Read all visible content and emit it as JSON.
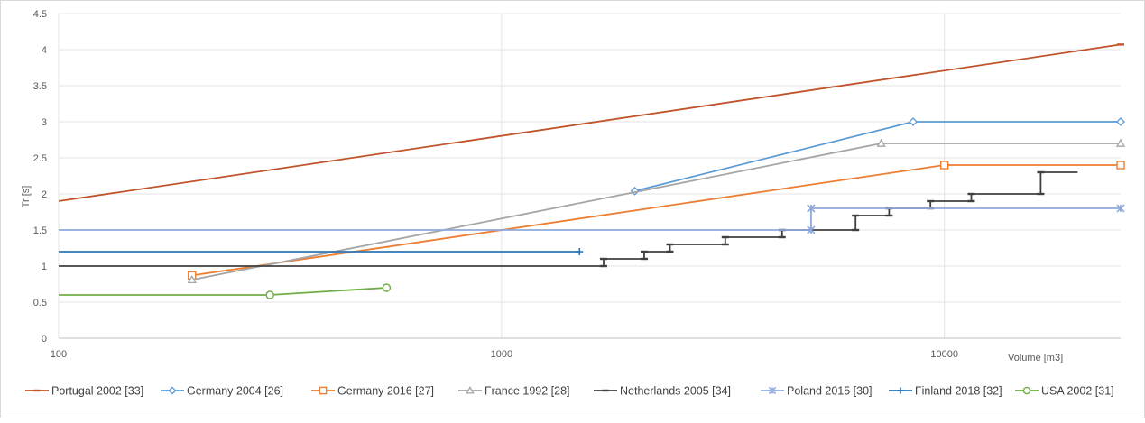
{
  "chart_data": {
    "type": "line",
    "x_scale": "log",
    "xlim": [
      100,
      25000
    ],
    "ylim": [
      0,
      4.5
    ],
    "xticks": [
      100,
      1000,
      10000
    ],
    "xtick_labels": [
      "100",
      "1000",
      "10000"
    ],
    "yticks": [
      0,
      0.5,
      1,
      1.5,
      2,
      2.5,
      3,
      3.5,
      4,
      4.5
    ],
    "ytick_labels": [
      "0",
      "0.5",
      "1",
      "1.5",
      "2",
      "2.5",
      "3",
      "3.5",
      "4",
      "4.5"
    ],
    "xlabel": "Volume [m3]",
    "ylabel": "Tr [s]",
    "grid": "vertical gridlines at decades, horizontal gridlines at each y tick",
    "legend_position": "bottom",
    "series": [
      {
        "name": "Portugal 2002 [33]",
        "color": "#C0532A",
        "marker": "dash",
        "points": [
          [
            100,
            1.9
          ],
          [
            25000,
            4.07
          ]
        ],
        "marker_indices": [
          1
        ]
      },
      {
        "name": "Germany 2004 [26]",
        "color": "#5B9BD5",
        "marker": "diamond",
        "points": [
          [
            2000,
            2.04
          ],
          [
            8500,
            3.0
          ],
          [
            25000,
            3.0
          ]
        ],
        "marker_indices": [
          0,
          1,
          2
        ]
      },
      {
        "name": "Germany 2016 [27]",
        "color": "#ED7D31",
        "marker": "square",
        "points": [
          [
            200,
            0.87
          ],
          [
            10000,
            2.4
          ],
          [
            25000,
            2.4
          ]
        ],
        "marker_indices": [
          0,
          1,
          2
        ]
      },
      {
        "name": "France 1992 [28]",
        "color": "#A5A5A5",
        "marker": "triangle",
        "points": [
          [
            200,
            0.81
          ],
          [
            7200,
            2.7
          ],
          [
            25000,
            2.7
          ]
        ],
        "marker_indices": [
          0,
          1,
          2
        ]
      },
      {
        "name": "Netherlands 2005 [34]",
        "color": "#404040",
        "marker": "dash",
        "points": [
          [
            100,
            1.0
          ],
          [
            1700,
            1.0
          ],
          [
            1700,
            1.1
          ],
          [
            2100,
            1.1
          ],
          [
            2100,
            1.2
          ],
          [
            2400,
            1.2
          ],
          [
            2400,
            1.3
          ],
          [
            3200,
            1.3
          ],
          [
            3200,
            1.4
          ],
          [
            4300,
            1.4
          ],
          [
            4300,
            1.5
          ],
          [
            6300,
            1.5
          ],
          [
            6300,
            1.7
          ],
          [
            7500,
            1.7
          ],
          [
            7500,
            1.8
          ],
          [
            9300,
            1.8
          ],
          [
            9300,
            1.9
          ],
          [
            11500,
            1.9
          ],
          [
            11500,
            2.0
          ],
          [
            16500,
            2.0
          ],
          [
            16500,
            2.3
          ],
          [
            20000,
            2.3
          ]
        ],
        "marker_indices": [
          1,
          2,
          3,
          4,
          5,
          6,
          7,
          8,
          9,
          10,
          11,
          12,
          13,
          14,
          15,
          16,
          17,
          18,
          19,
          20
        ]
      },
      {
        "name": "Poland 2015 [30]",
        "color": "#8EA9DB",
        "marker": "star",
        "points": [
          [
            100,
            1.5
          ],
          [
            5000,
            1.5
          ],
          [
            5000,
            1.8
          ],
          [
            25000,
            1.8
          ]
        ],
        "marker_indices": [
          1,
          2,
          3
        ]
      },
      {
        "name": "Finland 2018 [32]",
        "color": "#2E75B6",
        "marker": "plus",
        "points": [
          [
            100,
            1.2
          ],
          [
            1500,
            1.2
          ]
        ],
        "marker_indices": [
          1
        ]
      },
      {
        "name": "USA 2002 [31]",
        "color": "#70AD47",
        "marker": "circle",
        "points": [
          [
            100,
            0.6
          ],
          [
            300,
            0.6
          ],
          [
            550,
            0.7
          ]
        ],
        "marker_indices": [
          1,
          2
        ]
      }
    ]
  }
}
